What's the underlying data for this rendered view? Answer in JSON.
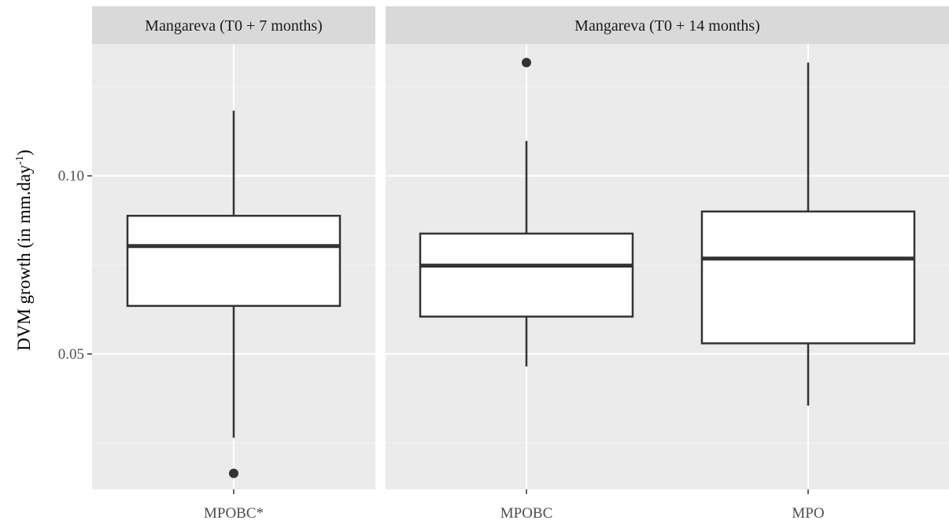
{
  "chart_data": {
    "type": "boxplot",
    "ylabel": "DVM growth (in mm.day",
    "ylabel_superscript": "-1",
    "ylabel_suffix": ")",
    "ylim": [
      0.012,
      0.137
    ],
    "yticks": [
      0.05,
      0.1
    ],
    "ytick_labels": [
      "0.05",
      "0.10"
    ],
    "grid": true,
    "legend": "none",
    "colors": {
      "panel_bg": "#ebebeb",
      "strip_bg": "#d9d9d9",
      "grid_major": "#ffffff",
      "grid_minor": "#f4f4f4",
      "box_fill": "#ffffff",
      "box_line": "#333333",
      "outlier": "#333333"
    },
    "facets": [
      {
        "label": "Mangareva (T0 + 7 months)",
        "boxes": [
          {
            "category": "MPOBC*",
            "lower_whisker": 0.0265,
            "q1": 0.0635,
            "median": 0.0803,
            "q3": 0.0888,
            "upper_whisker": 0.1183,
            "outliers": [
              0.0165
            ]
          }
        ]
      },
      {
        "label": "Mangareva (T0 + 14 months)",
        "boxes": [
          {
            "category": "MPOBC",
            "lower_whisker": 0.0465,
            "q1": 0.0605,
            "median": 0.0748,
            "q3": 0.0838,
            "upper_whisker": 0.1098,
            "outliers": [
              0.1318
            ]
          },
          {
            "category": "MPO",
            "lower_whisker": 0.0355,
            "q1": 0.053,
            "median": 0.0768,
            "q3": 0.09,
            "upper_whisker": 0.1318,
            "outliers": []
          }
        ]
      }
    ]
  }
}
